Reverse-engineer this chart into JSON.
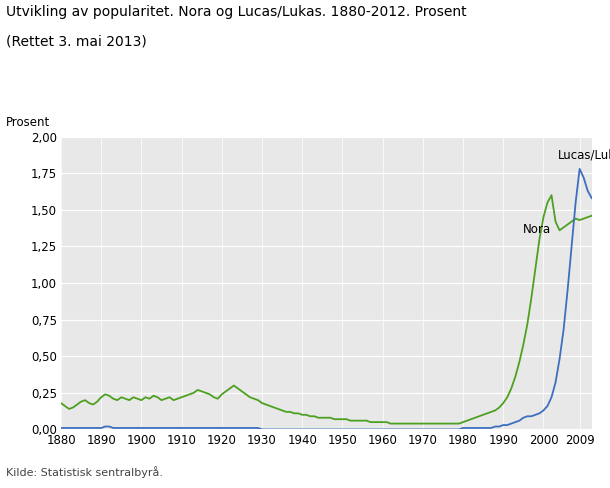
{
  "title_line1": "Utvikling av popularitet. Nora og Lucas/Lukas. 1880-2012. Prosent",
  "title_line2": "(Rettet 3. mai 2013)",
  "ylabel": "Prosent",
  "source": "Kilde: Statistisk sentralbyrå.",
  "xlim": [
    1880,
    2012
  ],
  "ylim": [
    0,
    2.0
  ],
  "yticks": [
    0.0,
    0.25,
    0.5,
    0.75,
    1.0,
    1.25,
    1.5,
    1.75,
    2.0
  ],
  "ytick_labels": [
    "0,00",
    "0,25",
    "0,50",
    "0,75",
    "1,00",
    "1,25",
    "1,50",
    "1,75",
    "2,00"
  ],
  "xticks": [
    1880,
    1890,
    1900,
    1910,
    1920,
    1930,
    1940,
    1950,
    1960,
    1970,
    1980,
    1990,
    2000,
    2009
  ],
  "nora_color": "#4da020",
  "lucas_color": "#3d6fbe",
  "background_color": "#e8e8e8",
  "nora_label": "Nora",
  "lucas_label": "Lucas/Lukas",
  "nora_years": [
    1880,
    1881,
    1882,
    1883,
    1884,
    1885,
    1886,
    1887,
    1888,
    1889,
    1890,
    1891,
    1892,
    1893,
    1894,
    1895,
    1896,
    1897,
    1898,
    1899,
    1900,
    1901,
    1902,
    1903,
    1904,
    1905,
    1906,
    1907,
    1908,
    1909,
    1910,
    1911,
    1912,
    1913,
    1914,
    1915,
    1916,
    1917,
    1918,
    1919,
    1920,
    1921,
    1922,
    1923,
    1924,
    1925,
    1926,
    1927,
    1928,
    1929,
    1930,
    1931,
    1932,
    1933,
    1934,
    1935,
    1936,
    1937,
    1938,
    1939,
    1940,
    1941,
    1942,
    1943,
    1944,
    1945,
    1946,
    1947,
    1948,
    1949,
    1950,
    1951,
    1952,
    1953,
    1954,
    1955,
    1956,
    1957,
    1958,
    1959,
    1960,
    1961,
    1962,
    1963,
    1964,
    1965,
    1966,
    1967,
    1968,
    1969,
    1970,
    1971,
    1972,
    1973,
    1974,
    1975,
    1976,
    1977,
    1978,
    1979,
    1980,
    1981,
    1982,
    1983,
    1984,
    1985,
    1986,
    1987,
    1988,
    1989,
    1990,
    1991,
    1992,
    1993,
    1994,
    1995,
    1996,
    1997,
    1998,
    1999,
    2000,
    2001,
    2002,
    2003,
    2004,
    2005,
    2006,
    2007,
    2008,
    2009,
    2010,
    2011,
    2012
  ],
  "nora_values": [
    0.18,
    0.16,
    0.14,
    0.15,
    0.17,
    0.19,
    0.2,
    0.18,
    0.17,
    0.19,
    0.22,
    0.24,
    0.23,
    0.21,
    0.2,
    0.22,
    0.21,
    0.2,
    0.22,
    0.21,
    0.2,
    0.22,
    0.21,
    0.23,
    0.22,
    0.2,
    0.21,
    0.22,
    0.2,
    0.21,
    0.22,
    0.23,
    0.24,
    0.25,
    0.27,
    0.26,
    0.25,
    0.24,
    0.22,
    0.21,
    0.24,
    0.26,
    0.28,
    0.3,
    0.28,
    0.26,
    0.24,
    0.22,
    0.21,
    0.2,
    0.18,
    0.17,
    0.16,
    0.15,
    0.14,
    0.13,
    0.12,
    0.12,
    0.11,
    0.11,
    0.1,
    0.1,
    0.09,
    0.09,
    0.08,
    0.08,
    0.08,
    0.08,
    0.07,
    0.07,
    0.07,
    0.07,
    0.06,
    0.06,
    0.06,
    0.06,
    0.06,
    0.05,
    0.05,
    0.05,
    0.05,
    0.05,
    0.04,
    0.04,
    0.04,
    0.04,
    0.04,
    0.04,
    0.04,
    0.04,
    0.04,
    0.04,
    0.04,
    0.04,
    0.04,
    0.04,
    0.04,
    0.04,
    0.04,
    0.04,
    0.05,
    0.06,
    0.07,
    0.08,
    0.09,
    0.1,
    0.11,
    0.12,
    0.13,
    0.15,
    0.18,
    0.22,
    0.28,
    0.36,
    0.46,
    0.58,
    0.72,
    0.9,
    1.1,
    1.3,
    1.45,
    1.55,
    1.6,
    1.42,
    1.36,
    1.38,
    1.4,
    1.42,
    1.44,
    1.43,
    1.44,
    1.45,
    1.46
  ],
  "lucas_values": [
    0.01,
    0.01,
    0.01,
    0.01,
    0.01,
    0.01,
    0.01,
    0.01,
    0.01,
    0.01,
    0.01,
    0.02,
    0.02,
    0.01,
    0.01,
    0.01,
    0.01,
    0.01,
    0.01,
    0.01,
    0.01,
    0.01,
    0.01,
    0.01,
    0.01,
    0.01,
    0.01,
    0.01,
    0.01,
    0.01,
    0.01,
    0.01,
    0.01,
    0.01,
    0.01,
    0.01,
    0.01,
    0.01,
    0.01,
    0.01,
    0.01,
    0.01,
    0.01,
    0.01,
    0.01,
    0.01,
    0.01,
    0.01,
    0.01,
    0.01,
    0.0,
    0.0,
    0.0,
    0.0,
    0.0,
    0.0,
    0.0,
    0.0,
    0.0,
    0.0,
    0.0,
    0.0,
    0.0,
    0.0,
    0.0,
    0.0,
    0.0,
    0.0,
    0.0,
    0.0,
    0.0,
    0.0,
    0.0,
    0.0,
    0.0,
    0.0,
    0.0,
    0.0,
    0.0,
    0.0,
    0.0,
    0.0,
    0.0,
    0.0,
    0.0,
    0.0,
    0.0,
    0.0,
    0.0,
    0.0,
    0.0,
    0.0,
    0.0,
    0.0,
    0.0,
    0.0,
    0.0,
    0.0,
    0.0,
    0.0,
    0.01,
    0.01,
    0.01,
    0.01,
    0.01,
    0.01,
    0.01,
    0.01,
    0.02,
    0.02,
    0.03,
    0.03,
    0.04,
    0.05,
    0.06,
    0.08,
    0.09,
    0.09,
    0.1,
    0.11,
    0.13,
    0.16,
    0.22,
    0.32,
    0.48,
    0.68,
    0.95,
    1.25,
    1.55,
    1.78,
    1.72,
    1.63,
    1.58
  ]
}
